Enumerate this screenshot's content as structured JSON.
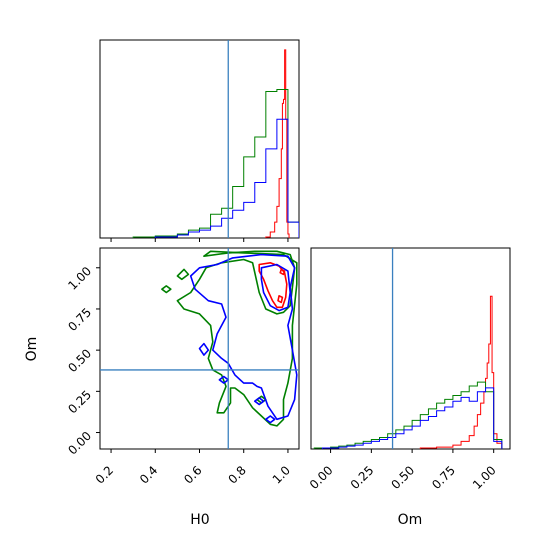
{
  "chart_data": {
    "type": "corner",
    "parameters": [
      "H0",
      "Om"
    ],
    "truth": {
      "H0": 0.73,
      "Om": 0.38
    },
    "colors": {
      "red": "#ff0000",
      "green": "#008000",
      "blue": "#0000ff",
      "truth": "#3a80bf"
    },
    "axes": {
      "H0": {
        "label": "H0",
        "range": [
          0.15,
          1.05
        ],
        "ticks": [
          "0.2",
          "0.4",
          "0.6",
          "0.8",
          "1.0"
        ],
        "tick_values": [
          0.2,
          0.4,
          0.6,
          0.8,
          1.0
        ]
      },
      "Om": {
        "label": "Om",
        "range": [
          -0.1,
          1.12
        ],
        "ticks": [
          "0.00",
          "0.25",
          "0.50",
          "0.75",
          "1.00"
        ],
        "tick_values": [
          0.0,
          0.25,
          0.5,
          0.75,
          1.0
        ]
      },
      "Om_marginal": {
        "range": [
          -0.12,
          1.1
        ],
        "ticks": [
          "0.00",
          "0.25",
          "0.50",
          "0.75",
          "1.00"
        ],
        "tick_values": [
          0.0,
          0.25,
          0.5,
          0.75,
          1.0
        ]
      }
    },
    "histograms": {
      "H0": [
        {
          "name": "red",
          "edges": [
            0.9,
            0.92,
            0.94,
            0.95,
            0.96,
            0.97,
            0.975,
            0.98,
            0.985,
            0.99,
            0.995,
            1.0,
            1.005
          ],
          "counts": [
            0.005,
            0.03,
            0.08,
            0.16,
            0.3,
            0.45,
            0.68,
            0.7,
            0.95,
            0.6,
            0.08,
            0.02
          ]
        },
        {
          "name": "green",
          "edges": [
            0.3,
            0.4,
            0.5,
            0.55,
            0.6,
            0.65,
            0.7,
            0.75,
            0.8,
            0.85,
            0.9,
            0.95,
            1.0,
            1.05
          ],
          "counts": [
            0.005,
            0.01,
            0.02,
            0.04,
            0.05,
            0.12,
            0.15,
            0.26,
            0.41,
            0.51,
            0.74,
            0.75,
            0.08
          ]
        },
        {
          "name": "blue",
          "edges": [
            0.4,
            0.5,
            0.55,
            0.6,
            0.65,
            0.7,
            0.75,
            0.8,
            0.85,
            0.9,
            0.95,
            1.0,
            1.05
          ],
          "counts": [
            0.005,
            0.015,
            0.03,
            0.04,
            0.06,
            0.1,
            0.14,
            0.18,
            0.28,
            0.45,
            0.6,
            0.08
          ]
        }
      ],
      "Om": [
        {
          "name": "red",
          "edges": [
            0.55,
            0.65,
            0.75,
            0.8,
            0.85,
            0.88,
            0.9,
            0.92,
            0.94,
            0.95,
            0.96,
            0.97,
            0.98,
            0.99,
            1.0,
            1.02,
            1.05
          ],
          "counts": [
            0.005,
            0.01,
            0.02,
            0.04,
            0.07,
            0.12,
            0.18,
            0.24,
            0.3,
            0.37,
            0.45,
            0.55,
            0.8,
            0.4,
            0.08,
            0.03
          ]
        },
        {
          "name": "green",
          "edges": [
            -0.1,
            0.0,
            0.05,
            0.1,
            0.15,
            0.2,
            0.25,
            0.3,
            0.35,
            0.4,
            0.45,
            0.5,
            0.55,
            0.6,
            0.65,
            0.7,
            0.75,
            0.8,
            0.85,
            0.9,
            0.95,
            1.0,
            1.05
          ],
          "counts": [
            0.005,
            0.01,
            0.015,
            0.02,
            0.03,
            0.04,
            0.05,
            0.06,
            0.08,
            0.1,
            0.12,
            0.15,
            0.18,
            0.21,
            0.24,
            0.26,
            0.28,
            0.3,
            0.33,
            0.35,
            0.3,
            0.05
          ]
        },
        {
          "name": "blue",
          "edges": [
            -0.05,
            0.05,
            0.1,
            0.15,
            0.2,
            0.25,
            0.3,
            0.35,
            0.4,
            0.45,
            0.5,
            0.55,
            0.6,
            0.65,
            0.7,
            0.75,
            0.8,
            0.85,
            0.9,
            0.95,
            1.0,
            1.05
          ],
          "counts": [
            0.005,
            0.01,
            0.015,
            0.02,
            0.03,
            0.04,
            0.05,
            0.06,
            0.08,
            0.1,
            0.12,
            0.15,
            0.17,
            0.2,
            0.22,
            0.25,
            0.27,
            0.25,
            0.3,
            0.32,
            0.04
          ]
        }
      ]
    },
    "contours": [
      {
        "name": "red",
        "points": [
          [
            0.87,
            1.02
          ],
          [
            0.92,
            1.03
          ],
          [
            0.96,
            1.01
          ],
          [
            0.985,
            0.97
          ],
          [
            0.995,
            0.9
          ],
          [
            0.99,
            0.82
          ],
          [
            0.975,
            0.76
          ],
          [
            0.95,
            0.76
          ],
          [
            0.93,
            0.8
          ],
          [
            0.91,
            0.86
          ],
          [
            0.89,
            0.93
          ],
          [
            0.87,
            0.98
          ],
          [
            0.87,
            1.02
          ]
        ]
      },
      {
        "name": "red",
        "points": [
          [
            0.97,
            0.99
          ],
          [
            0.985,
            0.98
          ],
          [
            0.98,
            0.96
          ],
          [
            0.965,
            0.97
          ],
          [
            0.97,
            0.99
          ]
        ]
      },
      {
        "name": "red",
        "points": [
          [
            0.96,
            0.83
          ],
          [
            0.975,
            0.82
          ],
          [
            0.97,
            0.79
          ],
          [
            0.955,
            0.8
          ],
          [
            0.96,
            0.83
          ]
        ]
      },
      {
        "name": "green",
        "points": [
          [
            0.62,
            1.07
          ],
          [
            0.73,
            1.09
          ],
          [
            0.85,
            1.1
          ],
          [
            0.95,
            1.1
          ],
          [
            1.01,
            1.08
          ],
          [
            1.03,
            1.0
          ],
          [
            1.02,
            0.88
          ],
          [
            1.01,
            0.77
          ],
          [
            0.98,
            0.73
          ],
          [
            0.95,
            0.72
          ],
          [
            0.9,
            0.75
          ],
          [
            0.87,
            0.85
          ],
          [
            0.85,
            0.97
          ],
          [
            0.84,
            1.03
          ],
          [
            0.8,
            1.05
          ],
          [
            0.7,
            1.03
          ],
          [
            0.63,
            1.0
          ],
          [
            0.6,
            0.93
          ],
          [
            0.56,
            0.85
          ],
          [
            0.5,
            0.8
          ],
          [
            0.53,
            0.75
          ],
          [
            0.6,
            0.72
          ],
          [
            0.65,
            0.65
          ],
          [
            0.66,
            0.55
          ],
          [
            0.64,
            0.45
          ],
          [
            0.66,
            0.38
          ],
          [
            0.7,
            0.35
          ],
          [
            0.72,
            0.28
          ],
          [
            0.69,
            0.18
          ],
          [
            0.68,
            0.12
          ],
          [
            0.71,
            0.12
          ],
          [
            0.74,
            0.18
          ],
          [
            0.74,
            0.27
          ],
          [
            0.76,
            0.27
          ],
          [
            0.8,
            0.23
          ],
          [
            0.84,
            0.15
          ],
          [
            0.88,
            0.1
          ],
          [
            0.92,
            0.05
          ],
          [
            0.95,
            0.04
          ],
          [
            0.98,
            0.08
          ],
          [
            0.98,
            0.2
          ],
          [
            1.0,
            0.3
          ],
          [
            1.02,
            0.45
          ],
          [
            1.02,
            0.65
          ],
          [
            1.04,
            0.9
          ],
          [
            1.04,
            1.03
          ],
          [
            0.98,
            1.08
          ],
          [
            0.8,
            1.09
          ],
          [
            0.65,
            1.1
          ],
          [
            0.62,
            1.07
          ]
        ]
      },
      {
        "name": "green",
        "points": [
          [
            0.5,
            0.95
          ],
          [
            0.53,
            0.99
          ],
          [
            0.55,
            0.96
          ],
          [
            0.52,
            0.93
          ],
          [
            0.5,
            0.95
          ]
        ]
      },
      {
        "name": "green",
        "points": [
          [
            0.45,
            0.89
          ],
          [
            0.47,
            0.87
          ],
          [
            0.45,
            0.85
          ],
          [
            0.43,
            0.87
          ],
          [
            0.45,
            0.89
          ]
        ]
      },
      {
        "name": "green",
        "points": [
          [
            0.88,
            0.22
          ],
          [
            0.9,
            0.2
          ],
          [
            0.88,
            0.18
          ],
          [
            0.86,
            0.2
          ],
          [
            0.88,
            0.22
          ]
        ]
      },
      {
        "name": "blue",
        "points": [
          [
            0.68,
            1.02
          ],
          [
            0.75,
            1.06
          ],
          [
            0.88,
            1.08
          ],
          [
            1.0,
            1.07
          ],
          [
            1.03,
            1.0
          ],
          [
            1.01,
            0.88
          ],
          [
            1.02,
            0.75
          ],
          [
            1.0,
            0.65
          ],
          [
            1.02,
            0.5
          ],
          [
            1.04,
            0.35
          ],
          [
            1.03,
            0.2
          ],
          [
            1.0,
            0.1
          ],
          [
            0.95,
            0.08
          ],
          [
            0.91,
            0.16
          ],
          [
            0.88,
            0.27
          ],
          [
            0.86,
            0.28
          ],
          [
            0.84,
            0.3
          ],
          [
            0.8,
            0.3
          ],
          [
            0.76,
            0.35
          ],
          [
            0.73,
            0.42
          ],
          [
            0.7,
            0.45
          ],
          [
            0.66,
            0.5
          ],
          [
            0.68,
            0.6
          ],
          [
            0.72,
            0.7
          ],
          [
            0.7,
            0.78
          ],
          [
            0.64,
            0.8
          ],
          [
            0.58,
            0.87
          ],
          [
            0.56,
            0.95
          ],
          [
            0.6,
            1.0
          ],
          [
            0.68,
            1.02
          ]
        ]
      },
      {
        "name": "blue",
        "points": [
          [
            0.88,
            1.0
          ],
          [
            0.95,
            1.02
          ],
          [
            1.0,
            0.98
          ],
          [
            1.01,
            0.85
          ],
          [
            1.0,
            0.76
          ],
          [
            0.96,
            0.74
          ],
          [
            0.92,
            0.77
          ],
          [
            0.89,
            0.85
          ],
          [
            0.88,
            0.93
          ],
          [
            0.88,
            1.0
          ]
        ]
      },
      {
        "name": "blue",
        "points": [
          [
            0.62,
            0.54
          ],
          [
            0.64,
            0.5
          ],
          [
            0.62,
            0.47
          ],
          [
            0.6,
            0.51
          ],
          [
            0.62,
            0.54
          ]
        ]
      },
      {
        "name": "blue",
        "points": [
          [
            0.71,
            0.34
          ],
          [
            0.73,
            0.32
          ],
          [
            0.71,
            0.3
          ],
          [
            0.69,
            0.32
          ],
          [
            0.71,
            0.34
          ]
        ]
      },
      {
        "name": "blue",
        "points": [
          [
            0.87,
            0.21
          ],
          [
            0.89,
            0.19
          ],
          [
            0.87,
            0.17
          ],
          [
            0.85,
            0.19
          ],
          [
            0.87,
            0.21
          ]
        ]
      },
      {
        "name": "blue",
        "points": [
          [
            0.92,
            0.1
          ],
          [
            0.94,
            0.08
          ],
          [
            0.92,
            0.06
          ],
          [
            0.9,
            0.08
          ],
          [
            0.92,
            0.1
          ]
        ]
      }
    ]
  }
}
